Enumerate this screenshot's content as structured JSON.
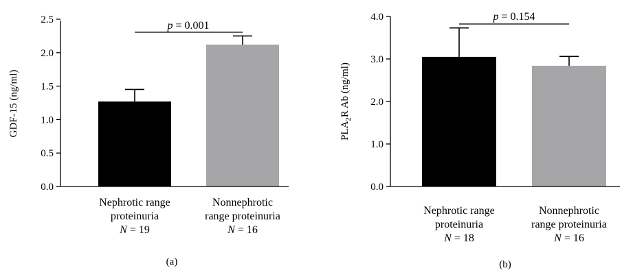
{
  "chart_data": [
    {
      "type": "bar",
      "panel_label": "(a)",
      "ylabel": "GDF-15 (ng/ml)",
      "ylim": [
        0,
        2.5
      ],
      "yticks": [
        "0.0",
        "0.5",
        "1.0",
        "1.5",
        "2.0",
        "2.5"
      ],
      "categories": [
        {
          "lines": [
            "Nephrotic range",
            "proteinuria"
          ],
          "n_prefix": "N",
          "n_value": "19"
        },
        {
          "lines": [
            "Nonnephrotic",
            "range proteinuria"
          ],
          "n_prefix": "N",
          "n_value": "16"
        }
      ],
      "values": [
        1.27,
        2.12
      ],
      "errors": [
        0.18,
        0.13
      ],
      "colors": [
        "#000000",
        "#a6a6a8"
      ],
      "annotation": {
        "p_symbol": "p",
        "p_text": " = 0.001"
      }
    },
    {
      "type": "bar",
      "panel_label": "(b)",
      "ylabel": {
        "prefix": "PLA",
        "sub": "2",
        "suffix": "R Ab (ng/ml)"
      },
      "ylim": [
        0,
        4.0
      ],
      "yticks": [
        "0.0",
        "1.0",
        "2.0",
        "3.0",
        "4.0"
      ],
      "categories": [
        {
          "lines": [
            "Nephrotic range",
            "proteinuria"
          ],
          "n_prefix": "N",
          "n_value": "18"
        },
        {
          "lines": [
            "Nonnephrotic",
            "range proteinuria"
          ],
          "n_prefix": "N",
          "n_value": "16"
        }
      ],
      "values": [
        3.05,
        2.84
      ],
      "errors": [
        0.68,
        0.22
      ],
      "colors": [
        "#000000",
        "#a6a6a8"
      ],
      "annotation": {
        "p_symbol": "p",
        "p_text": " = 0.154"
      }
    }
  ]
}
